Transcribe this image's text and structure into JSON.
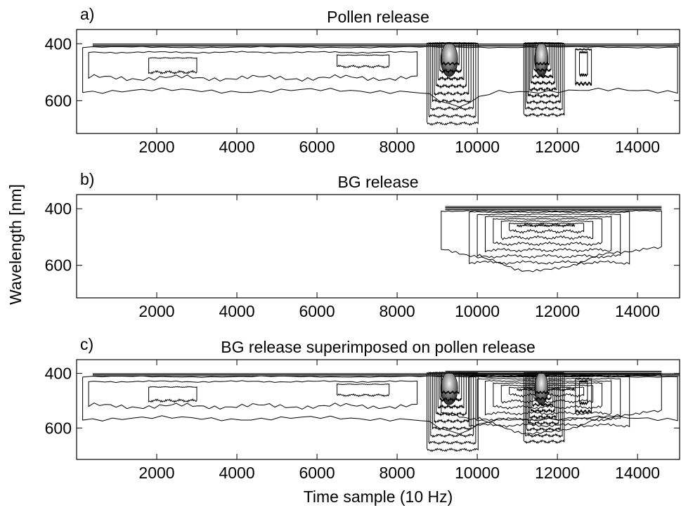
{
  "chart_data": [
    {
      "type": "contour",
      "panel_label": "a)",
      "title": "Pollen release",
      "xlim": [
        0,
        15050
      ],
      "ylim": [
        350,
        715
      ],
      "y_reversed": true,
      "xticks": [
        2000,
        4000,
        6000,
        8000,
        10000,
        12000,
        14000
      ],
      "yticks": [
        400,
        600
      ],
      "grid": false
    },
    {
      "type": "contour",
      "panel_label": "b)",
      "title": "BG release",
      "ylabel": "Wavelength [nm]",
      "xlim": [
        0,
        15050
      ],
      "ylim": [
        350,
        715
      ],
      "y_reversed": true,
      "xticks": [
        2000,
        4000,
        6000,
        8000,
        10000,
        12000,
        14000
      ],
      "yticks": [
        400,
        600
      ],
      "grid": false
    },
    {
      "type": "contour",
      "panel_label": "c)",
      "title": "BG release superimposed on pollen release",
      "xlabel": "Time sample (10 Hz)",
      "xlim": [
        0,
        15050
      ],
      "ylim": [
        350,
        715
      ],
      "y_reversed": true,
      "xticks": [
        2000,
        4000,
        6000,
        8000,
        10000,
        12000,
        14000
      ],
      "yticks": [
        400,
        600
      ],
      "grid": false
    }
  ]
}
